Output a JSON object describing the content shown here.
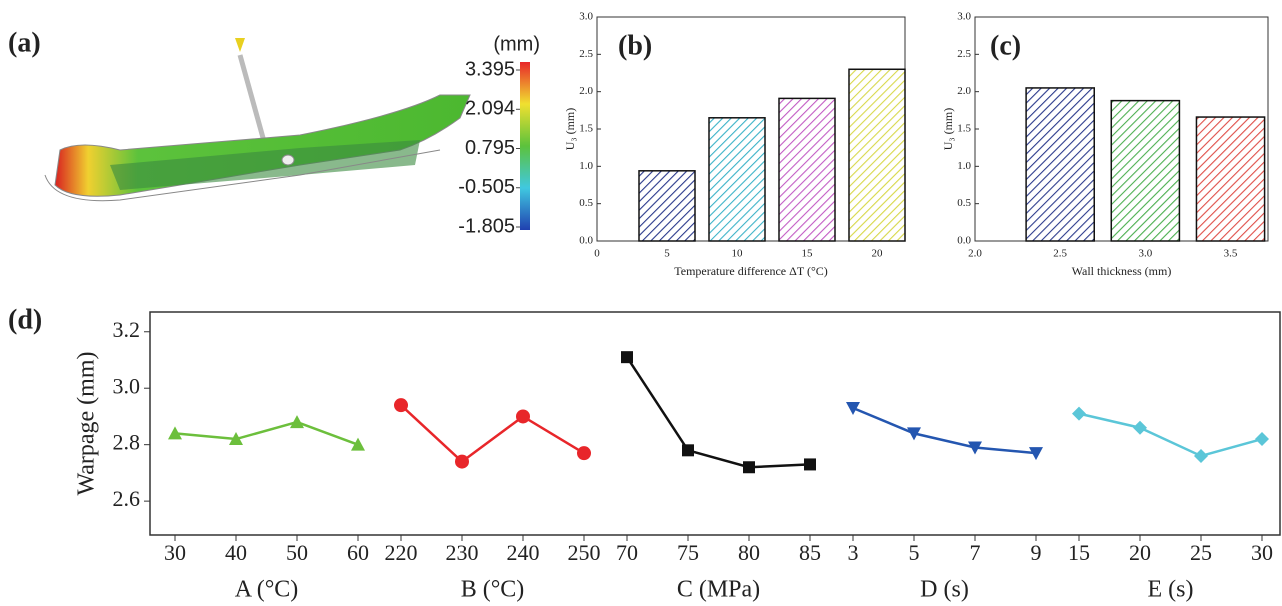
{
  "chart_data": [
    {
      "type": "colorbar",
      "label": "(a)",
      "unit": "(mm)",
      "ticks": [
        3.395,
        2.094,
        0.795,
        -0.505,
        -1.805
      ]
    },
    {
      "type": "bar",
      "label": "(b)",
      "xlabel": "Temperature difference ΔT (°C)",
      "ylabel": "U₃ (mm)",
      "x": [
        5,
        10,
        15,
        20
      ],
      "values": [
        0.94,
        1.65,
        1.91,
        2.3
      ],
      "colors": [
        "#2b3a8c",
        "#3bb3c8",
        "#c25bc4",
        "#d8d84a"
      ],
      "xlim": [
        0,
        22
      ],
      "xticks": [
        0,
        5,
        10,
        15,
        20
      ],
      "ylim": [
        0,
        3
      ],
      "yticks": [
        {
          "value": 0,
          "label": "0.0"
        },
        0.5,
        {
          "value": 1,
          "label": "1.0"
        },
        1.5,
        {
          "value": 2,
          "label": "2.0"
        },
        2.5,
        {
          "value": 3,
          "label": "3.0"
        }
      ]
    },
    {
      "type": "bar",
      "label": "(c)",
      "xlabel": "Wall thickness (mm)",
      "ylabel": "U₃ (mm)",
      "x": [
        2.5,
        3.0,
        3.5
      ],
      "values": [
        2.05,
        1.88,
        1.66
      ],
      "colors": [
        "#2b3a8c",
        "#4caf50",
        "#e0504a"
      ],
      "xlim": [
        2.0,
        3.72
      ],
      "xticks": [
        {
          "value": 2,
          "label": "2.0"
        },
        2.5,
        {
          "value": 3,
          "label": "3.0"
        },
        3.5
      ],
      "ylim": [
        0,
        3
      ],
      "yticks": [
        {
          "value": 0,
          "label": "0.0"
        },
        0.5,
        {
          "value": 1,
          "label": "1.0"
        },
        1.5,
        {
          "value": 2,
          "label": "2.0"
        },
        2.5,
        {
          "value": 3,
          "label": "3.0"
        }
      ]
    },
    {
      "type": "line",
      "label": "(d)",
      "ylabel": "Warpage (mm)",
      "ylim": [
        2.48,
        3.27
      ],
      "yticks": [
        2.6,
        2.8,
        {
          "value": 3,
          "label": "3.0"
        },
        3.2
      ],
      "panels": [
        {
          "xlabel": "A (°C)",
          "categories": [
            "30",
            "40",
            "50",
            "60"
          ],
          "values": [
            2.84,
            2.82,
            2.88,
            2.8
          ],
          "color": "#6cbf3c",
          "marker": "triangle-up"
        },
        {
          "xlabel": "B (°C)",
          "categories": [
            "220",
            "230",
            "240",
            "250"
          ],
          "values": [
            2.94,
            2.74,
            2.9,
            2.77
          ],
          "color": "#e8262a",
          "marker": "circle"
        },
        {
          "xlabel": "C (MPa)",
          "categories": [
            "70",
            "75",
            "80",
            "85"
          ],
          "values": [
            3.11,
            2.78,
            2.72,
            2.73
          ],
          "color": "#111111",
          "marker": "square"
        },
        {
          "xlabel": "D (s)",
          "categories": [
            "3",
            "5",
            "7",
            "9"
          ],
          "values": [
            2.93,
            2.84,
            2.79,
            2.77
          ],
          "color": "#2456b0",
          "marker": "triangle-down"
        },
        {
          "xlabel": "E (s)",
          "categories": [
            "15",
            "20",
            "25",
            "30"
          ],
          "values": [
            2.91,
            2.86,
            2.76,
            2.82
          ],
          "color": "#5bc6d8",
          "marker": "diamond"
        }
      ]
    }
  ]
}
